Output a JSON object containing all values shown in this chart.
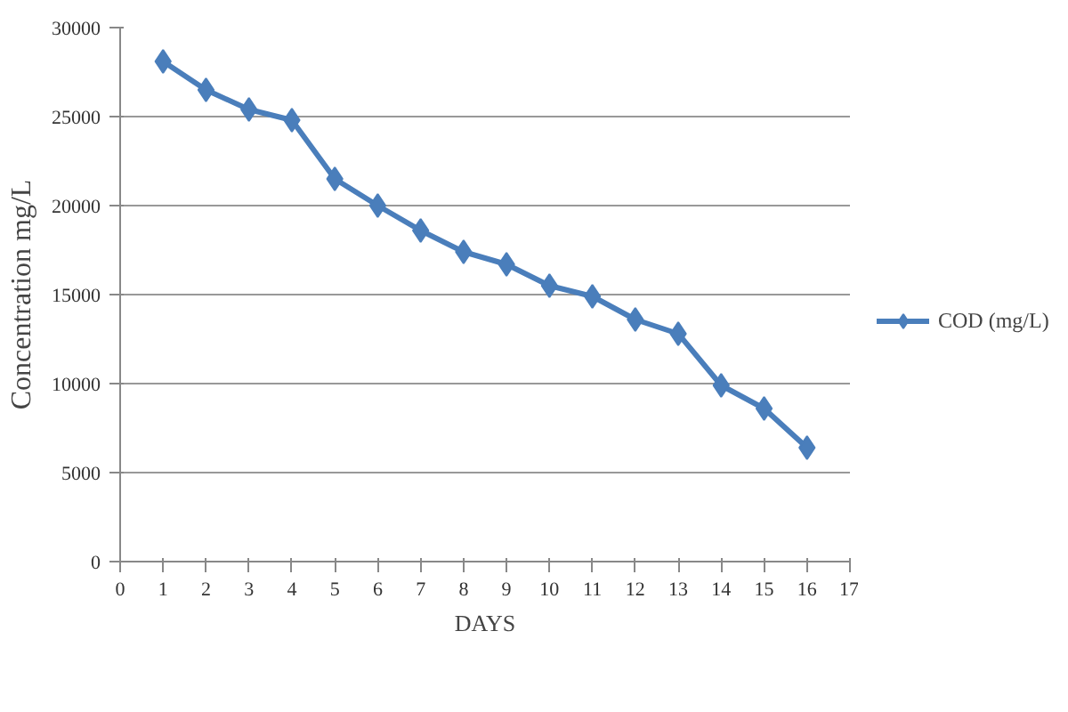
{
  "chart_data": {
    "type": "line",
    "xlabel": "DAYS",
    "ylabel": "Concentration mg/L",
    "x": [
      1,
      2,
      3,
      4,
      5,
      6,
      7,
      8,
      9,
      10,
      11,
      12,
      13,
      14,
      15,
      16
    ],
    "series": [
      {
        "name": "COD (mg/L)",
        "color": "#4a7ebb",
        "values": [
          28100,
          26500,
          25400,
          24800,
          21500,
          20000,
          18600,
          17400,
          16700,
          15500,
          14900,
          13600,
          12800,
          9900,
          8600,
          6400
        ]
      }
    ],
    "xlim": [
      0,
      17
    ],
    "xticks": [
      0,
      1,
      2,
      3,
      4,
      5,
      6,
      7,
      8,
      9,
      10,
      11,
      12,
      13,
      14,
      15,
      16,
      17
    ],
    "ylim": [
      0,
      30000
    ],
    "yticks": [
      0,
      5000,
      10000,
      15000,
      20000,
      25000,
      30000
    ],
    "grid": "y",
    "legend": "right",
    "marker": "diamond",
    "line_style": "solid"
  }
}
